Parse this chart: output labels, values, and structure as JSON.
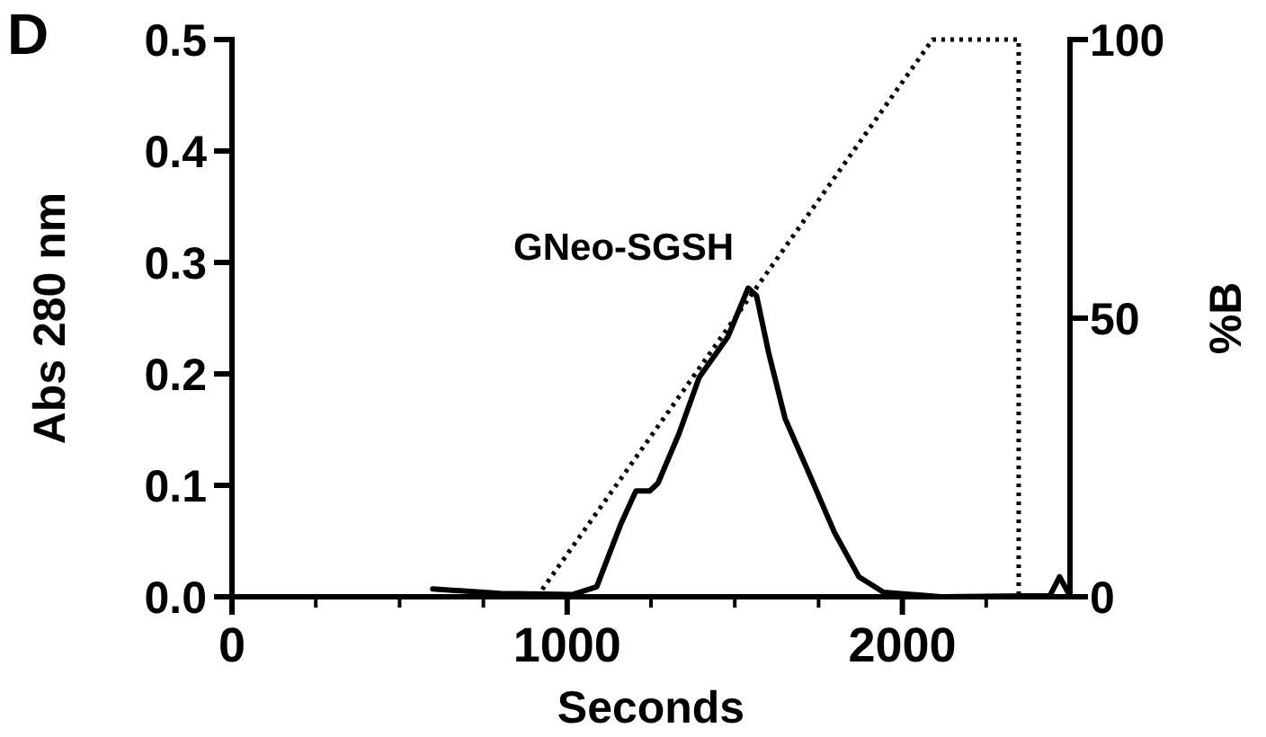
{
  "chart_data": {
    "type": "line",
    "xlabel": "Seconds",
    "ylabel": "Abs 280 nm",
    "y2label": "%B",
    "annotations": [
      "D",
      {
        "text": "GNeo-SGSH",
        "x": 1540,
        "y": 0.277
      }
    ],
    "xlim": [
      0,
      2500
    ],
    "xticks": [
      0,
      {
        "value": 250,
        "label": null
      },
      {
        "value": 500,
        "label": null
      },
      {
        "value": 750,
        "label": null
      },
      1000,
      {
        "value": 1250,
        "label": null
      },
      {
        "value": 1500,
        "label": null
      },
      {
        "value": 1750,
        "label": null
      },
      2000,
      {
        "value": 2250,
        "label": null
      }
    ],
    "ylim": [
      0,
      0.5
    ],
    "yticks": [
      {
        "value": 0,
        "label": "0.0"
      },
      0.1,
      0.2,
      0.3,
      0.4,
      0.5
    ],
    "y2lim": [
      0,
      100
    ],
    "y2ticks": [
      0,
      50,
      100
    ],
    "grid": false,
    "marker": "none",
    "series": [
      {
        "color": "#000000",
        "line_style": "solid",
        "x": [
          599,
          800,
          1015,
          1088,
          1161,
          1205,
          1247,
          1271,
          1333,
          1394,
          1479,
          1540,
          1565,
          1601,
          1650,
          1724,
          1797,
          1870,
          1944,
          2115,
          2440,
          2469,
          2494
        ],
        "values": [
          0.007,
          0.003,
          0.002,
          0.009,
          0.066,
          0.095,
          0.095,
          0.102,
          0.146,
          0.197,
          0.233,
          0.277,
          0.27,
          0.219,
          0.16,
          0.109,
          0.058,
          0.018,
          0.004,
          0,
          0.001,
          0.018,
          0.004
        ]
      },
      {
        "color": "#000000",
        "line_style": "dotted",
        "axis": "y2",
        "x": [
          910,
          2090,
          2347,
          2347
        ],
        "values": [
          0,
          100,
          100,
          0
        ]
      }
    ]
  }
}
